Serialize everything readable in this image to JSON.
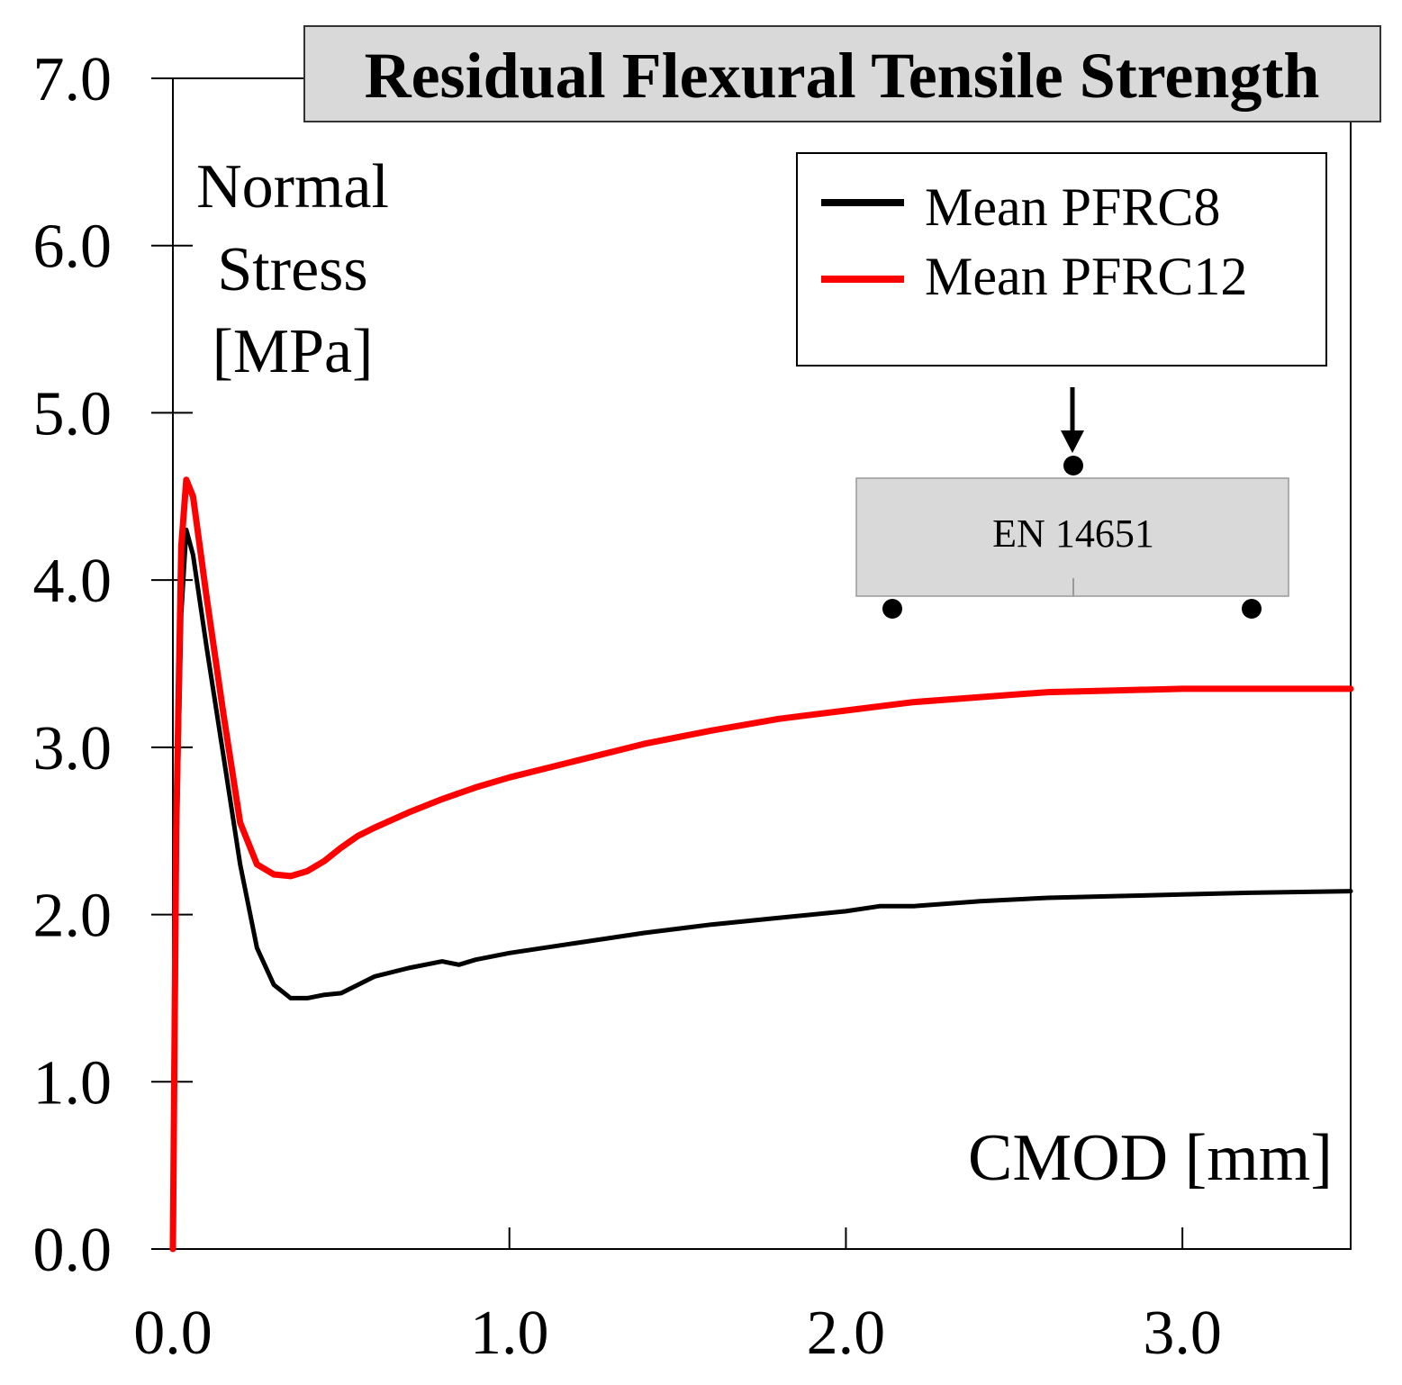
{
  "chart_data": {
    "type": "line",
    "title": "Residual Flexural Tensile Strength",
    "xlabel": "CMOD [mm]",
    "ylabel_lines": [
      "Normal",
      "Stress",
      "[MPa]"
    ],
    "xlim": [
      0,
      3.5
    ],
    "ylim": [
      0,
      7
    ],
    "x_ticks": [
      "0.0",
      "1.0",
      "2.0",
      "3.0"
    ],
    "x_tick_values": [
      0,
      1,
      2,
      3
    ],
    "y_ticks": [
      "0.0",
      "1.0",
      "2.0",
      "3.0",
      "4.0",
      "5.0",
      "6.0",
      "7.0"
    ],
    "y_tick_values": [
      0,
      1,
      2,
      3,
      4,
      5,
      6,
      7
    ],
    "grid": false,
    "legend_position": "top-right",
    "series": [
      {
        "name": "Mean PFRC8",
        "color": "#000000",
        "x": [
          0,
          0.01,
          0.025,
          0.04,
          0.06,
          0.1,
          0.15,
          0.2,
          0.25,
          0.3,
          0.35,
          0.4,
          0.45,
          0.5,
          0.55,
          0.6,
          0.7,
          0.8,
          0.85,
          0.9,
          1.0,
          1.2,
          1.4,
          1.6,
          1.8,
          2.0,
          2.1,
          2.2,
          2.4,
          2.6,
          2.8,
          3.0,
          3.2,
          3.5
        ],
        "y": [
          0,
          2.3,
          3.8,
          4.3,
          4.15,
          3.6,
          2.95,
          2.3,
          1.8,
          1.58,
          1.5,
          1.5,
          1.52,
          1.53,
          1.58,
          1.63,
          1.68,
          1.72,
          1.7,
          1.73,
          1.77,
          1.83,
          1.89,
          1.94,
          1.98,
          2.02,
          2.05,
          2.05,
          2.08,
          2.1,
          2.11,
          2.12,
          2.13,
          2.14
        ]
      },
      {
        "name": "Mean PFRC12",
        "color": "#ff0000",
        "x": [
          0,
          0.01,
          0.025,
          0.04,
          0.06,
          0.1,
          0.15,
          0.2,
          0.25,
          0.3,
          0.35,
          0.4,
          0.45,
          0.5,
          0.55,
          0.6,
          0.7,
          0.8,
          0.9,
          1.0,
          1.2,
          1.4,
          1.6,
          1.8,
          2.0,
          2.2,
          2.4,
          2.6,
          2.8,
          3.0,
          3.2,
          3.5
        ],
        "y": [
          0,
          2.5,
          4.2,
          4.6,
          4.5,
          3.9,
          3.2,
          2.55,
          2.3,
          2.24,
          2.23,
          2.26,
          2.32,
          2.4,
          2.47,
          2.52,
          2.61,
          2.69,
          2.76,
          2.82,
          2.92,
          3.02,
          3.1,
          3.17,
          3.22,
          3.27,
          3.3,
          3.33,
          3.34,
          3.35,
          3.35,
          3.35
        ]
      }
    ],
    "inset": {
      "label": "EN 14651"
    }
  }
}
